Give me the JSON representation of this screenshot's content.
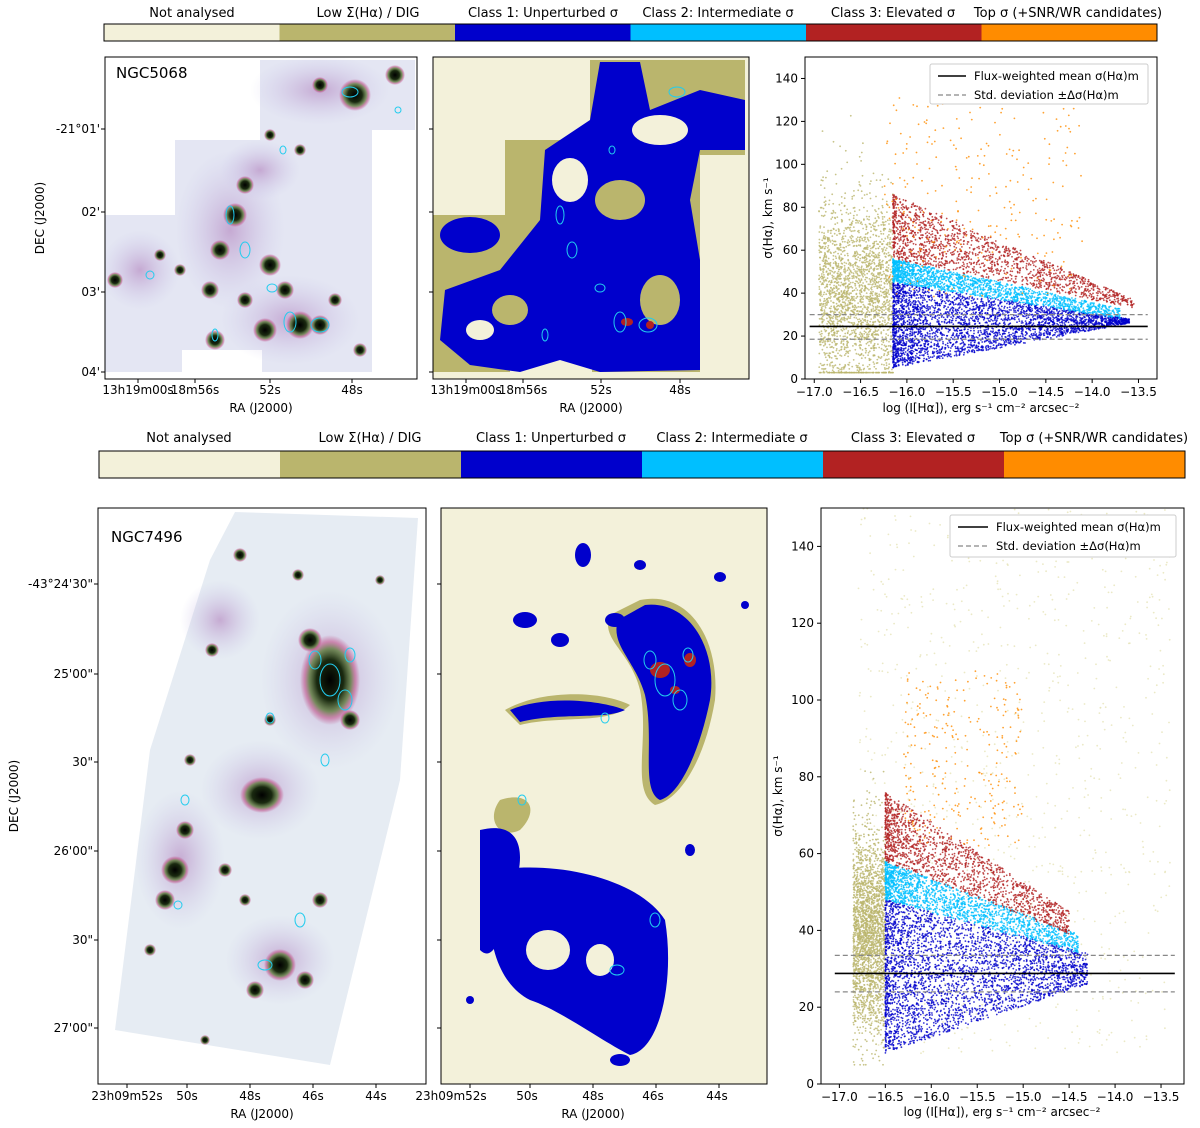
{
  "colorbar_labels": [
    "Not analysed",
    "Low Σ(Hα) / DIG",
    "Class 1: Unperturbed σ",
    "Class 2: Intermediate σ",
    "Class 3: Elevated σ",
    "Top σ (+SNR/WR candidates)"
  ],
  "colors": {
    "not_analysed": "#f3f1da",
    "dig": "#bab56d",
    "class1": "#0000cc",
    "class2": "#00bfff",
    "class3": "#b22222",
    "top": "#ff8c00"
  },
  "panels": [
    {
      "galaxy": "NGC5068",
      "ra_label": "RA (J2000)",
      "dec_label": "DEC (J2000)",
      "ra_ticks": [
        "13h19m00s",
        "18m56s",
        "52s",
        "48s"
      ],
      "dec_ticks": [
        "-21°01'",
        "02'",
        "03'",
        "04'"
      ]
    },
    {
      "galaxy": "NGC7496",
      "ra_label": "RA (J2000)",
      "dec_label": "DEC (J2000)",
      "ra_ticks": [
        "23h09m52s",
        "50s",
        "48s",
        "46s",
        "44s"
      ],
      "dec_ticks": [
        "-43°24'30\"",
        "25'00\"",
        "30\"",
        "26'00\"",
        "30\"",
        "27'00\""
      ]
    }
  ],
  "chart_data": [
    {
      "type": "scatter",
      "galaxy": "NGC5068",
      "xlabel": "log (I[Hα]), erg s⁻¹ cm⁻² arcsec⁻²",
      "ylabel": "σ(Hα), km s⁻¹",
      "xlim": [
        -17.1,
        -13.3
      ],
      "ylim": [
        0,
        150
      ],
      "xticks": [
        -17.0,
        -16.5,
        -16.0,
        -15.5,
        -15.0,
        -14.5,
        -14.0,
        -13.5
      ],
      "yticks": [
        0,
        20,
        40,
        60,
        80,
        100,
        120,
        140
      ],
      "legend": {
        "placement": "top-right",
        "entries": [
          "Flux-weighted mean σ(Hα)m",
          "Std. deviation ±Δσ(Hα)m"
        ]
      },
      "mean_sigma": 24.5,
      "std_band": [
        18.5,
        30.0
      ],
      "dig_threshold_logI": -16.15,
      "regions": {
        "dig": {
          "x": [
            -16.95,
            -16.15
          ],
          "y": [
            3,
            148
          ]
        },
        "class1": {
          "x": [
            -16.15,
            -13.6
          ],
          "y_min": 5,
          "y_max_left": 45,
          "y_max_right": 28
        },
        "class2": {
          "x": [
            -16.15,
            -13.7
          ],
          "y_max_left": 56,
          "y_max_right": 33
        },
        "class3": {
          "x": [
            -16.15,
            -13.55
          ],
          "y_max_left": 86,
          "y_max_right": 37
        },
        "top": {
          "x": [
            -16.25,
            -14.1
          ],
          "y": [
            38,
            135
          ]
        }
      }
    },
    {
      "type": "scatter",
      "galaxy": "NGC7496",
      "xlabel": "log (I[Hα]), erg s⁻¹ cm⁻² arcsec⁻²",
      "ylabel": "σ(Hα), km s⁻¹",
      "xlim": [
        -17.2,
        -13.25
      ],
      "ylim": [
        0,
        150
      ],
      "xticks": [
        -17.0,
        -16.5,
        -16.0,
        -15.5,
        -15.0,
        -14.5,
        -14.0,
        -13.5
      ],
      "yticks": [
        0,
        20,
        40,
        60,
        80,
        100,
        120,
        140
      ],
      "legend": {
        "placement": "top-right",
        "entries": [
          "Flux-weighted mean σ(Hα)m",
          "Std. deviation ±Δσ(Hα)m"
        ]
      },
      "mean_sigma": 28.8,
      "std_band": [
        24.0,
        33.5
      ],
      "dig_threshold_logI": -16.5,
      "regions": {
        "dig": {
          "x": [
            -16.85,
            -16.5
          ],
          "y": [
            5,
            100
          ]
        },
        "class1": {
          "x": [
            -16.5,
            -14.3
          ],
          "y_min": 8,
          "y_max_left": 48,
          "y_max_right": 34
        },
        "class2": {
          "x": [
            -16.5,
            -14.4
          ],
          "y_max_left": 58,
          "y_max_right": 39
        },
        "class3": {
          "x": [
            -16.5,
            -14.5
          ],
          "y_max_left": 76,
          "y_max_right": 45
        },
        "top": {
          "x": [
            -16.3,
            -15.0
          ],
          "y": [
            62,
            108
          ]
        }
      }
    }
  ]
}
